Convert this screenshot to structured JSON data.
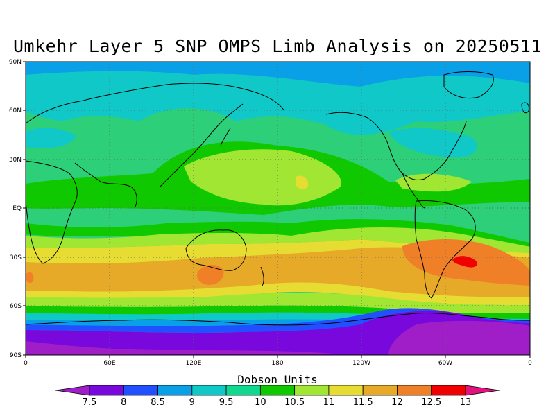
{
  "title": "Umkehr Layer 5 SNP OMPS Limb Analysis on 20250511",
  "map": {
    "lat_labels": [
      "90N",
      "60N",
      "30N",
      "EQ",
      "30S",
      "60S",
      "90S"
    ],
    "lon_labels": [
      "0",
      "60E",
      "120E",
      "180",
      "120W",
      "60W",
      "0"
    ],
    "colors": {
      "ocean_base": "#2dcf78",
      "coastline": "#000000",
      "grid": "#666666"
    }
  },
  "colorbar": {
    "title": "Dobson Units",
    "labels": [
      "7.5",
      "8",
      "8.5",
      "9",
      "9.5",
      "10",
      "10.5",
      "11",
      "11.5",
      "12",
      "12.5",
      "13"
    ],
    "colors": [
      "#a01ec8",
      "#7808dc",
      "#2050ff",
      "#0aa0e8",
      "#10c8c8",
      "#10d890",
      "#10c800",
      "#a0e632",
      "#e6dc32",
      "#e6aa28",
      "#f08028",
      "#f00000",
      "#e0147a"
    ]
  }
}
